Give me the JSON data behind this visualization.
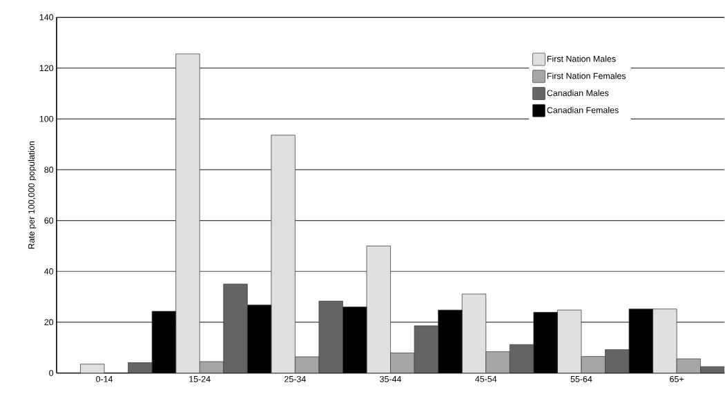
{
  "chart_data": {
    "type": "bar",
    "ylabel": "Rate per 100,000 population",
    "categories": [
      "0-14",
      "15-24",
      "25-34",
      "35-44",
      "45-54",
      "55-64",
      "65+"
    ],
    "series": [
      {
        "name": "First Nation Males",
        "color": "#dfe0e2",
        "values": [
          3.5,
          125.6,
          93.6,
          50,
          31.1,
          24.8,
          25.2
        ]
      },
      {
        "name": "First Nation Females",
        "color": "#a5a6a8",
        "values": [
          null,
          4.5,
          6.4,
          7.9,
          8.4,
          6.5,
          5.6
        ]
      },
      {
        "name": "Canadian Males",
        "color": "#636466",
        "values": [
          4.1,
          35,
          28.3,
          18.6,
          11.2,
          9.2,
          2.5
        ]
      },
      {
        "name": "Canadian Females",
        "color": "#000000",
        "values": [
          null,
          24.3,
          26.8,
          26,
          24.8,
          23.9,
          25.2
        ]
      }
    ],
    "ylim": [
      0,
      140
    ],
    "yticks": [
      0,
      20,
      40,
      60,
      80,
      100,
      120,
      140
    ],
    "grid": "y",
    "legend": "top right"
  }
}
